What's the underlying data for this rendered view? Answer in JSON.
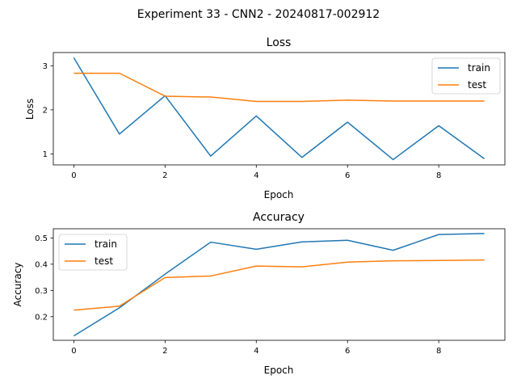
{
  "figure": {
    "title": "Experiment 33 - CNN2 - 20240817-002912"
  },
  "colors": {
    "train": "#1f77b4",
    "test": "#ff7f0e",
    "axis": "#000000",
    "legend_border": "#cccccc"
  },
  "chart_data": [
    {
      "type": "line",
      "title": "Loss",
      "xlabel": "Epoch",
      "ylabel": "Loss",
      "xlim": [
        -0.45,
        9.45
      ],
      "ylim": [
        0.75,
        3.3
      ],
      "xticks": [
        0,
        2,
        4,
        6,
        8
      ],
      "yticks": [
        1,
        2,
        3
      ],
      "grid": false,
      "legend_position": "upper right",
      "x": [
        0,
        1,
        2,
        3,
        4,
        5,
        6,
        7,
        8,
        9
      ],
      "series": [
        {
          "name": "train",
          "values": [
            3.18,
            1.45,
            2.32,
            0.95,
            1.86,
            0.92,
            1.72,
            0.87,
            1.64,
            0.89
          ]
        },
        {
          "name": "test",
          "values": [
            2.83,
            2.83,
            2.31,
            2.29,
            2.19,
            2.19,
            2.22,
            2.2,
            2.2,
            2.2
          ]
        }
      ]
    },
    {
      "type": "line",
      "title": "Accuracy",
      "xlabel": "Epoch",
      "ylabel": "Accuracy",
      "xlim": [
        -0.45,
        9.45
      ],
      "ylim": [
        0.11,
        0.535
      ],
      "xticks": [
        0,
        2,
        4,
        6,
        8
      ],
      "yticks": [
        0.2,
        0.3,
        0.4,
        0.5
      ],
      "ytick_labels": [
        "0.2",
        "0.3",
        "0.4",
        "0.5"
      ],
      "grid": false,
      "legend_position": "upper left",
      "x": [
        0,
        1,
        2,
        3,
        4,
        5,
        6,
        7,
        8,
        9
      ],
      "series": [
        {
          "name": "train",
          "values": [
            0.127,
            0.234,
            0.362,
            0.484,
            0.457,
            0.485,
            0.491,
            0.453,
            0.513,
            0.517
          ]
        },
        {
          "name": "test",
          "values": [
            0.225,
            0.24,
            0.349,
            0.355,
            0.393,
            0.39,
            0.408,
            0.413,
            0.414,
            0.416
          ]
        }
      ]
    }
  ]
}
